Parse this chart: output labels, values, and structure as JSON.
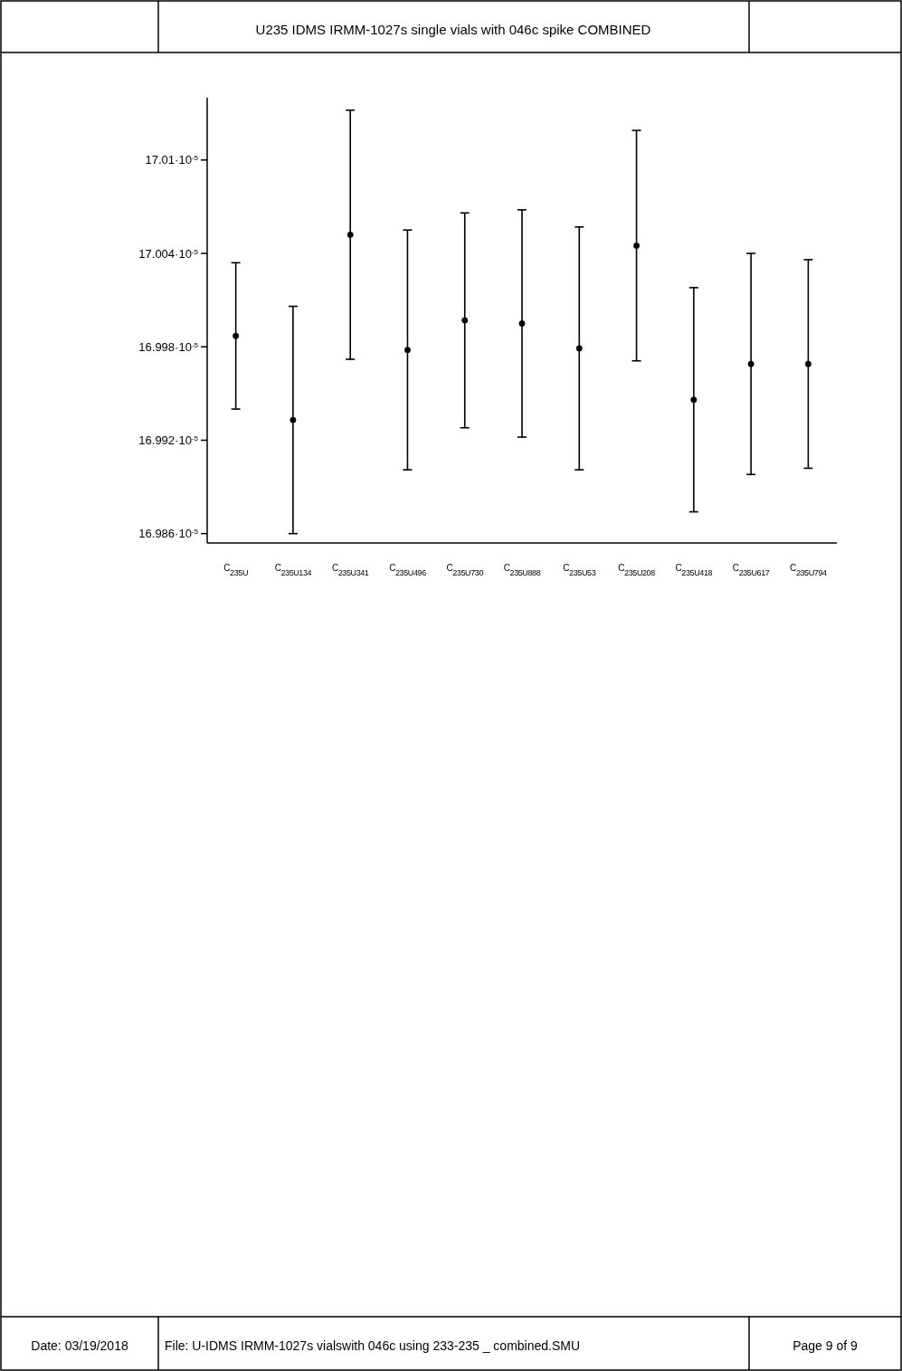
{
  "chart_data": {
    "type": "scatter",
    "title": "U235 IDMS IRMM-1027s single vials with 046c spike COMBINED",
    "categories": [
      "C$_{235U}$",
      "C$_{235U134}$",
      "C$_{235U341}$",
      "C$_{235U496}$",
      "C$_{235U730}$",
      "C$_{235U888}$",
      "C$_{235U53}$",
      "C$_{235U208}$",
      "C$_{235U418}$",
      "C$_{235U617}$",
      "C$_{235U794}$"
    ],
    "values": [
      0.000169987,
      0.000169933,
      0.000170052,
      0.000169978,
      0.000169997,
      0.000169995,
      0.000169979,
      0.000170045,
      0.000169946,
      0.000169969,
      0.000169969
    ],
    "errors": [
      4.7e-08,
      7.3e-08,
      8e-08,
      7.7e-08,
      6.9e-08,
      7.3e-08,
      7.8e-08,
      7.4e-08,
      7.2e-08,
      7.1e-08,
      6.7e-08
    ],
    "color": "#000000",
    "marker": "circle",
    "ylim": [
      0.000169854,
      0.00017014
    ],
    "yticks": [
      {
        "value": 0.00016986,
        "label": "16.986·10$^{-5}$"
      },
      {
        "value": 0.00016992,
        "label": "16.992·10$^{-5}$"
      },
      {
        "value": 0.00016998,
        "label": "16.998·10$^{-5}$"
      },
      {
        "value": 0.00017004,
        "label": "17.004·10$^{-5}$"
      },
      {
        "value": 0.0001701,
        "label": "17.01·10$^{-5}$"
      }
    ],
    "grid": false,
    "annotations": [
      "Date: 03/19/2018",
      "File: U-IDMS IRMM-1027s vialswith 046c using 233-235 _ combined.SMU",
      "Page 9 of 9"
    ]
  }
}
